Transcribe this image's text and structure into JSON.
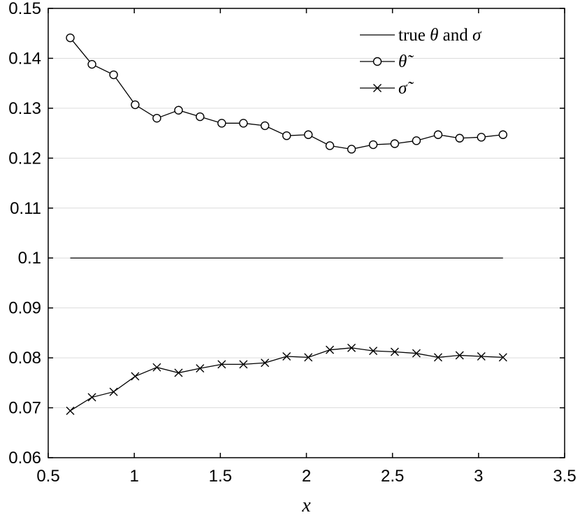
{
  "chart_data": {
    "type": "line",
    "title": "",
    "xlabel": "x",
    "ylabel": "",
    "xlim": [
      0.5,
      3.5
    ],
    "ylim": [
      0.06,
      0.15
    ],
    "xticks": [
      0.5,
      1,
      1.5,
      2,
      2.5,
      3,
      3.5
    ],
    "xtick_labels": [
      "0.5",
      "1",
      "1.5",
      "2",
      "2.5",
      "3",
      "3.5"
    ],
    "yticks": [
      0.06,
      0.07,
      0.08,
      0.09,
      0.1,
      0.11,
      0.12,
      0.13,
      0.14,
      0.15
    ],
    "ytick_labels": [
      "0.06",
      "0.07",
      "0.08",
      "0.09",
      "0.1",
      "0.11",
      "0.12",
      "0.13",
      "0.14",
      "0.15"
    ],
    "grid": "horizontal",
    "legend_position": "top-right",
    "x": [
      0.628,
      0.754,
      0.88,
      1.005,
      1.131,
      1.257,
      1.382,
      1.508,
      1.634,
      1.759,
      1.885,
      2.011,
      2.136,
      2.262,
      2.388,
      2.513,
      2.639,
      2.765,
      2.89,
      3.016,
      3.142
    ],
    "series": [
      {
        "name": "true θ and σ",
        "legend_parts": [
          "true ",
          "θ",
          " and ",
          "σ"
        ],
        "marker": "none",
        "x": [
          0.628,
          3.142
        ],
        "values": [
          0.1,
          0.1
        ]
      },
      {
        "name": "θ̃",
        "marker": "circle",
        "values": [
          0.1441,
          0.1388,
          0.1367,
          0.1307,
          0.128,
          0.1296,
          0.1283,
          0.127,
          0.127,
          0.1265,
          0.1245,
          0.1247,
          0.1225,
          0.1218,
          0.1227,
          0.1229,
          0.1235,
          0.1247,
          0.124,
          0.1242,
          0.1247
        ]
      },
      {
        "name": "σ̃",
        "marker": "x",
        "values": [
          0.0694,
          0.0721,
          0.0732,
          0.0763,
          0.0781,
          0.077,
          0.0779,
          0.0787,
          0.0787,
          0.079,
          0.0803,
          0.0801,
          0.0816,
          0.082,
          0.0814,
          0.0812,
          0.0809,
          0.0801,
          0.0805,
          0.0803,
          0.0801
        ]
      }
    ]
  }
}
